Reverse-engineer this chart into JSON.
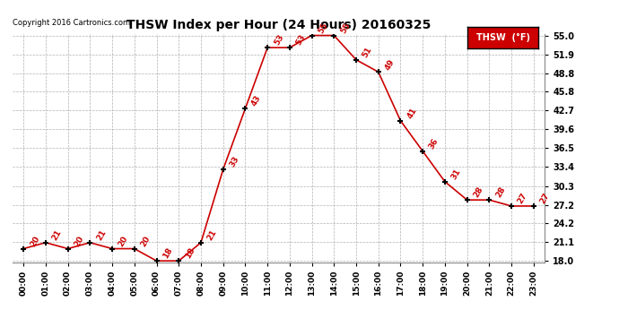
{
  "title": "THSW Index per Hour (24 Hours) 20160325",
  "copyright": "Copyright 2016 Cartronics.com",
  "legend_label": "THSW  (°F)",
  "hours": [
    0,
    1,
    2,
    3,
    4,
    5,
    6,
    7,
    8,
    9,
    10,
    11,
    12,
    13,
    14,
    15,
    16,
    17,
    18,
    19,
    20,
    21,
    22,
    23
  ],
  "hour_labels": [
    "00:00",
    "01:00",
    "02:00",
    "03:00",
    "04:00",
    "05:00",
    "06:00",
    "07:00",
    "08:00",
    "09:00",
    "10:00",
    "11:00",
    "12:00",
    "13:00",
    "14:00",
    "15:00",
    "16:00",
    "17:00",
    "18:00",
    "19:00",
    "20:00",
    "21:00",
    "22:00",
    "23:00"
  ],
  "values": [
    20,
    21,
    20,
    21,
    20,
    20,
    18,
    18,
    21,
    33,
    43,
    53,
    53,
    55,
    55,
    51,
    49,
    41,
    36,
    31,
    28,
    28,
    27,
    27
  ],
  "ylim_min": 18.0,
  "ylim_max": 55.0,
  "yticks": [
    18.0,
    21.1,
    24.2,
    27.2,
    30.3,
    33.4,
    36.5,
    39.6,
    42.7,
    45.8,
    48.8,
    51.9,
    55.0
  ],
  "line_color": "#cc0000",
  "marker_color": "#000000",
  "bg_color": "#ffffff",
  "grid_color": "#b0b0b0",
  "title_color": "#000000",
  "legend_bg": "#cc0000",
  "legend_text_color": "#ffffff"
}
